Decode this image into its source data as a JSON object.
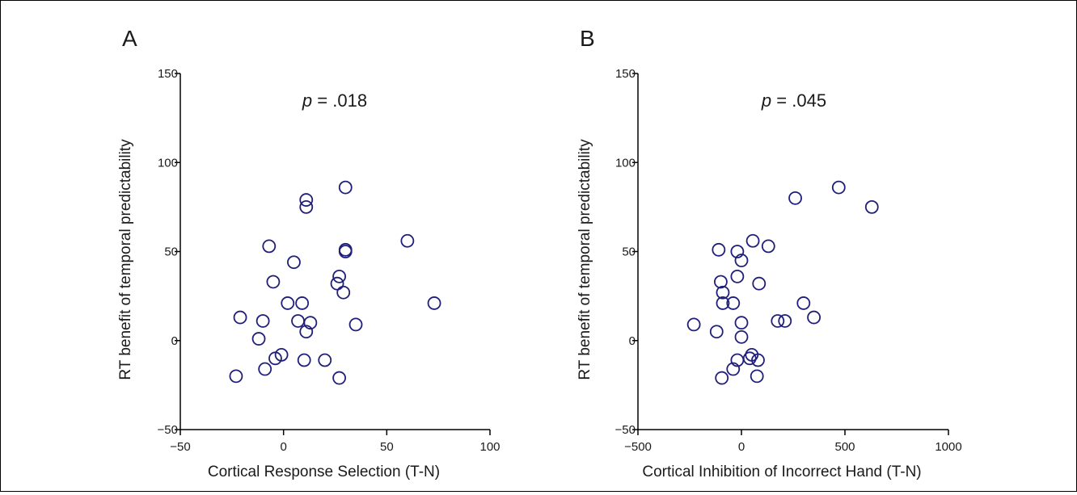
{
  "figure": {
    "background": "#ffffff",
    "marker_color": "#1f1f7a",
    "axis_color": "#000000"
  },
  "chart_data": [
    {
      "type": "scatter",
      "panel_label": "A",
      "annotation": {
        "prefix": "p",
        "value": " = .018"
      },
      "xlabel": "Cortical Response Selection (T-N)",
      "ylabel": "RT benefit of temporal predictability",
      "xlim": [
        -50,
        100
      ],
      "ylim": [
        -50,
        150
      ],
      "xticks": [
        -50,
        0,
        50,
        100
      ],
      "xtick_labels": [
        "−50",
        "0",
        "50",
        "100"
      ],
      "yticks": [
        -50,
        0,
        50,
        100,
        150
      ],
      "ytick_labels": [
        "−50",
        "0",
        "50",
        "100",
        "150"
      ],
      "grid": false,
      "marker": "open-circle",
      "points": [
        [
          30,
          86
        ],
        [
          11,
          79
        ],
        [
          11,
          75
        ],
        [
          60,
          56
        ],
        [
          -7,
          53
        ],
        [
          30,
          51
        ],
        [
          30,
          50
        ],
        [
          5,
          44
        ],
        [
          -5,
          33
        ],
        [
          27,
          36
        ],
        [
          26,
          32
        ],
        [
          29,
          27
        ],
        [
          73,
          21
        ],
        [
          9,
          21
        ],
        [
          2,
          21
        ],
        [
          -21,
          13
        ],
        [
          -10,
          11
        ],
        [
          7,
          11
        ],
        [
          13,
          10
        ],
        [
          35,
          9
        ],
        [
          11,
          5
        ],
        [
          -12,
          1
        ],
        [
          -1,
          -8
        ],
        [
          -4,
          -10
        ],
        [
          10,
          -11
        ],
        [
          20,
          -11
        ],
        [
          -9,
          -16
        ],
        [
          -23,
          -20
        ],
        [
          27,
          -21
        ]
      ]
    },
    {
      "type": "scatter",
      "panel_label": "B",
      "annotation": {
        "prefix": "p",
        "value": " = .045"
      },
      "xlabel": "Cortical Inhibition of Incorrect Hand (T-N)",
      "ylabel": "RT benefit of temporal predictability",
      "xlim": [
        -500,
        1000
      ],
      "ylim": [
        -50,
        150
      ],
      "xticks": [
        -500,
        0,
        500,
        1000
      ],
      "xtick_labels": [
        "−500",
        "0",
        "500",
        "1000"
      ],
      "yticks": [
        -50,
        0,
        50,
        100,
        150
      ],
      "ytick_labels": [
        "−50",
        "0",
        "50",
        "100",
        "150"
      ],
      "grid": false,
      "marker": "open-circle",
      "points": [
        [
          470,
          86
        ],
        [
          260,
          80
        ],
        [
          630,
          75
        ],
        [
          55,
          56
        ],
        [
          130,
          53
        ],
        [
          -110,
          51
        ],
        [
          -20,
          50
        ],
        [
          0,
          45
        ],
        [
          -20,
          36
        ],
        [
          -100,
          33
        ],
        [
          85,
          32
        ],
        [
          -90,
          27
        ],
        [
          300,
          21
        ],
        [
          -90,
          21
        ],
        [
          -40,
          21
        ],
        [
          350,
          13
        ],
        [
          175,
          11
        ],
        [
          210,
          11
        ],
        [
          0,
          10
        ],
        [
          -230,
          9
        ],
        [
          -120,
          5
        ],
        [
          0,
          2
        ],
        [
          50,
          -8
        ],
        [
          40,
          -10
        ],
        [
          -20,
          -11
        ],
        [
          80,
          -11
        ],
        [
          -40,
          -16
        ],
        [
          75,
          -20
        ],
        [
          -95,
          -21
        ]
      ]
    }
  ]
}
